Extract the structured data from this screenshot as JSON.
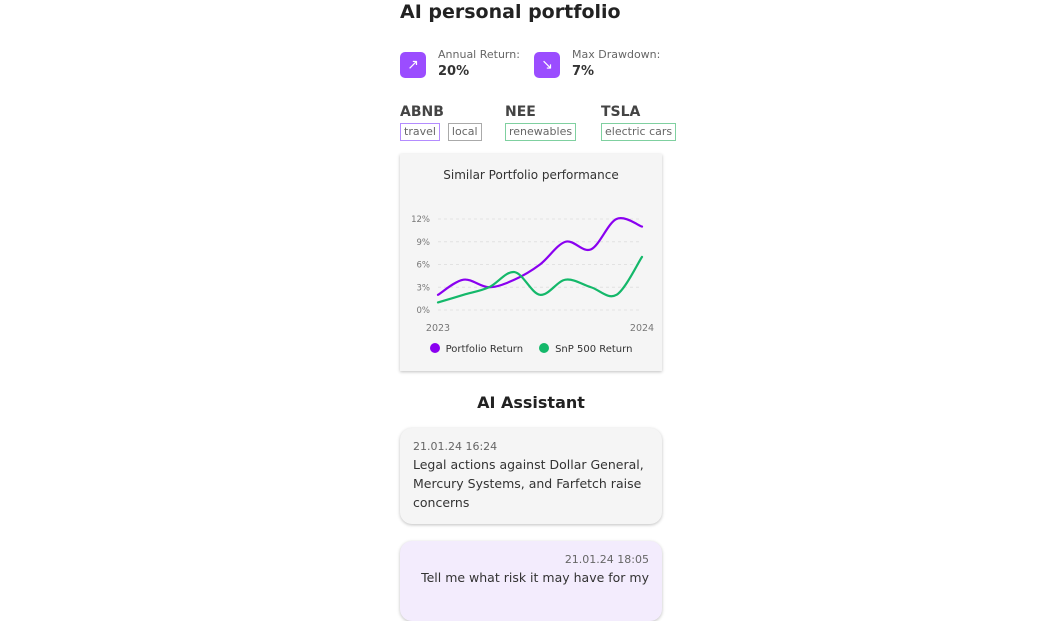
{
  "header": {
    "title": "AI personal portfolio"
  },
  "stats": [
    {
      "label": "Annual Return:",
      "value": "20%",
      "icon": "arrow-up-right-icon"
    },
    {
      "label": "Max Drawdown:",
      "value": "7%",
      "icon": "trending-down-icon"
    }
  ],
  "tickers": [
    {
      "symbol": "ABNB",
      "tags": [
        {
          "label": "travel",
          "color": "#b48cff"
        },
        {
          "label": "local",
          "color": "#aaaaaa"
        }
      ]
    },
    {
      "symbol": "NEE",
      "tags": [
        {
          "label": "renewables",
          "color": "#7fd0a0"
        }
      ]
    },
    {
      "symbol": "TSLA",
      "tags": [
        {
          "label": "electric cars",
          "color": "#7fd0a0"
        }
      ]
    }
  ],
  "chart_data": {
    "type": "line",
    "title": "Similar Portfolio performance",
    "x_tick_labels": [
      "2023",
      "2024"
    ],
    "y_ticks": [
      0,
      3,
      6,
      9,
      12
    ],
    "y_tick_labels": [
      "0%",
      "3%",
      "6%",
      "9%",
      "12%"
    ],
    "ylim": [
      0,
      12
    ],
    "grid": "horizontal dashed",
    "legend": "bottom",
    "series": [
      {
        "name": "Portfolio Return",
        "color": "#8a00f0",
        "values": [
          2,
          4,
          3,
          4,
          6,
          9,
          8,
          12,
          11
        ]
      },
      {
        "name": "SnP 500 Return",
        "color": "#14b86a",
        "values": [
          1,
          2,
          3,
          5,
          2,
          4,
          3,
          2,
          7
        ]
      }
    ]
  },
  "assistant": {
    "title": "AI Assistant",
    "messages": [
      {
        "time": "21.01.24 16:24",
        "text": "Legal actions against Dollar General, Mercury Systems, and Farfetch raise concerns",
        "from": "assistant"
      },
      {
        "time": "21.01.24 18:05",
        "text": "Tell me what risk it may have for my",
        "from": "user"
      }
    ]
  }
}
